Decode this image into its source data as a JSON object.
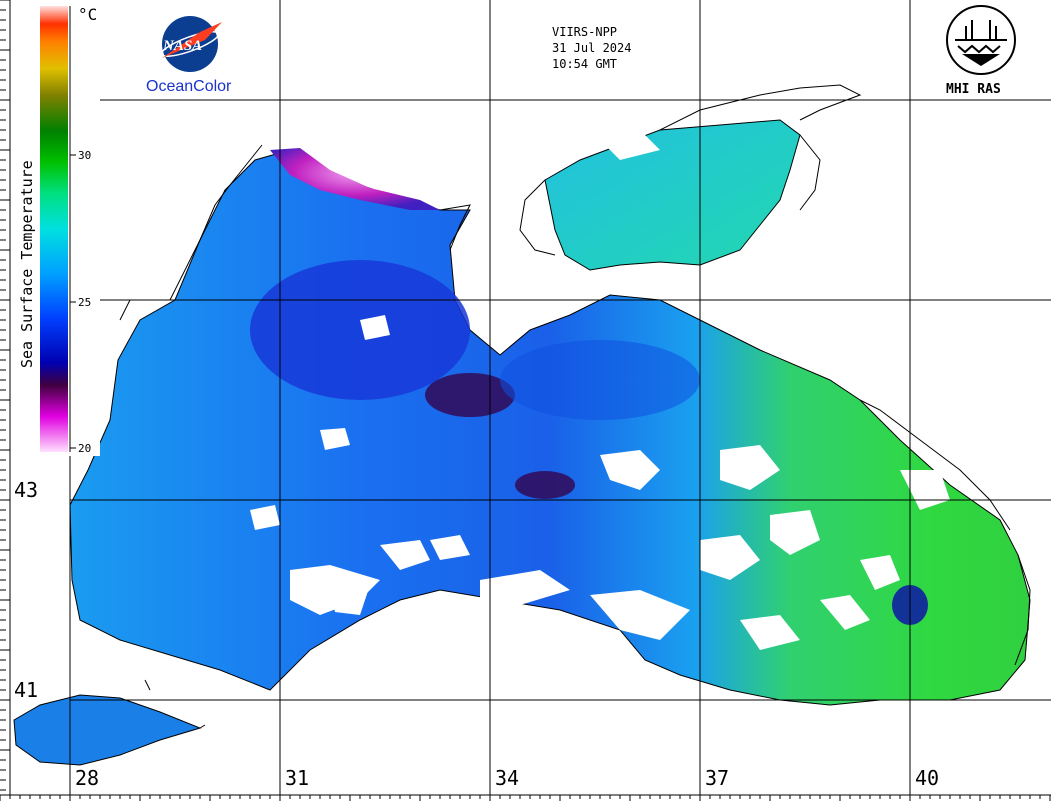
{
  "product": {
    "satellite": "VIIRS-NPP",
    "date": "31 Jul 2024",
    "time": "10:54 GMT"
  },
  "logos": {
    "nasa_text": "NASA",
    "oceancolor_text": "OceanColor",
    "institute_text": "MHI RAS"
  },
  "colorbar": {
    "title": "Sea Surface Temperature",
    "unit": "°C",
    "ticks": [
      "20",
      "25",
      "30"
    ],
    "colors": [
      "#ffe0ff",
      "#e000e0",
      "#400040",
      "#0000b0",
      "#0040ff",
      "#00a0ff",
      "#00e0e0",
      "#00e080",
      "#00c000",
      "#008000",
      "#808000",
      "#e0c000",
      "#ff8000",
      "#ff3000",
      "#ff8080",
      "#ffe0e0"
    ]
  },
  "grid": {
    "latitudes": [
      "43",
      "41"
    ],
    "longitudes": [
      "28",
      "31",
      "34",
      "37",
      "40"
    ]
  },
  "palette": {
    "background": "#ffffff",
    "cloud_gap": "#ffffff",
    "coast": "#000000",
    "water_cool": "#0a3be0",
    "water_mid": "#1aa0f0",
    "water_warm": "#22d0c0",
    "water_hot": "#30d850",
    "hotspot": "#d030d0",
    "coldspot": "#301060"
  }
}
